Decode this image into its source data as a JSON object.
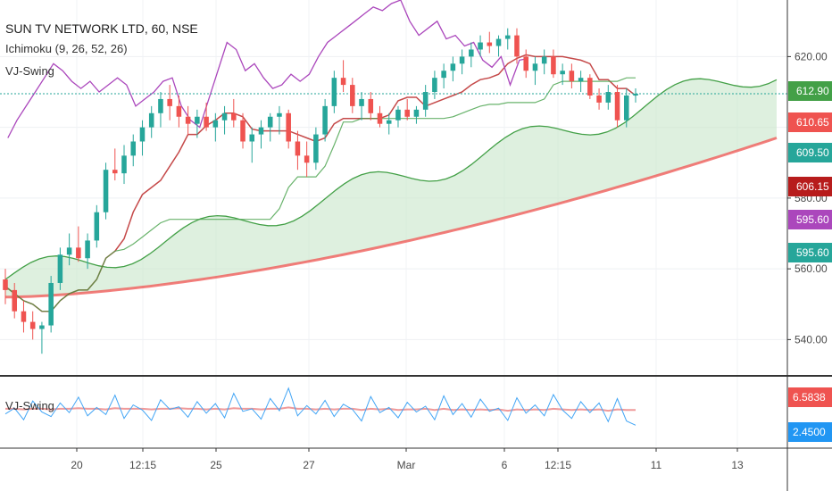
{
  "header": {
    "title": "SUN TV NETWORK LTD, 60, NSE",
    "indicator_ichimoku": "Ichimoku (9, 26, 52, 26)",
    "indicator_vj": "VJ-Swing"
  },
  "oscillator": {
    "label": "VJ-Swing"
  },
  "colors": {
    "up": "#26a69a",
    "down": "#ef5350",
    "purple": "#ab47bc",
    "green_line": "#43a047",
    "red_line": "#ef5350",
    "conv": "#b71c1c",
    "cloud": "#c8e6c9",
    "osc_blue": "#42a5f5",
    "osc_red": "#ef9a9a"
  },
  "chart_data": [
    {
      "type": "candlestick",
      "title": "SUN TV NETWORK LTD, 60, NSE",
      "y_ticks": [
        "620.00",
        "580.00",
        "560.00",
        "540.00"
      ],
      "x_ticks": [
        "20",
        "12:15",
        "25",
        "27",
        "Mar",
        "6",
        "12:15",
        "11",
        "13"
      ],
      "ylim": [
        530,
        636
      ],
      "price_labels": [
        {
          "text": "612.90",
          "color": "#43a047"
        },
        {
          "text": "610.65",
          "color": "#ef5350"
        },
        {
          "text": "609.50",
          "color": "#26a69a"
        },
        {
          "text": "606.15",
          "color": "#b71c1c"
        },
        {
          "text": "595.60",
          "color": "#ab47bc"
        },
        {
          "text": "595.60",
          "color": "#26a69a"
        }
      ],
      "last_price": 609.5,
      "candles": [
        [
          557,
          560,
          550,
          554
        ],
        [
          554,
          556,
          546,
          548
        ],
        [
          548,
          551,
          542,
          545
        ],
        [
          545,
          548,
          540,
          543
        ],
        [
          543,
          545,
          536,
          544
        ],
        [
          544,
          558,
          542,
          556
        ],
        [
          556,
          566,
          554,
          564
        ],
        [
          564,
          570,
          561,
          566
        ],
        [
          566,
          572,
          562,
          563
        ],
        [
          563,
          570,
          560,
          568
        ],
        [
          568,
          578,
          566,
          576
        ],
        [
          576,
          590,
          574,
          588
        ],
        [
          588,
          594,
          585,
          587
        ],
        [
          587,
          595,
          584,
          592
        ],
        [
          592,
          598,
          589,
          596
        ],
        [
          596,
          602,
          592,
          600
        ],
        [
          600,
          606,
          597,
          604
        ],
        [
          604,
          610,
          600,
          608
        ],
        [
          608,
          612,
          602,
          606
        ],
        [
          606,
          609,
          600,
          603
        ],
        [
          603,
          606,
          598,
          601
        ],
        [
          601,
          605,
          597,
          603
        ],
        [
          603,
          607,
          599,
          600
        ],
        [
          600,
          604,
          596,
          602
        ],
        [
          602,
          606,
          598,
          604
        ],
        [
          604,
          608,
          600,
          602
        ],
        [
          602,
          604,
          594,
          596
        ],
        [
          596,
          600,
          590,
          598
        ],
        [
          598,
          602,
          594,
          600
        ],
        [
          600,
          604,
          596,
          603
        ],
        [
          603,
          606,
          598,
          604
        ],
        [
          604,
          605,
          594,
          596
        ],
        [
          596,
          599,
          588,
          592
        ],
        [
          592,
          596,
          586,
          590
        ],
        [
          590,
          600,
          588,
          598
        ],
        [
          598,
          608,
          596,
          606
        ],
        [
          606,
          616,
          604,
          614
        ],
        [
          614,
          619,
          610,
          612
        ],
        [
          612,
          614,
          604,
          606
        ],
        [
          606,
          610,
          602,
          608
        ],
        [
          608,
          610,
          602,
          604
        ],
        [
          604,
          606,
          600,
          601
        ],
        [
          601,
          604,
          598,
          602
        ],
        [
          602,
          606,
          600,
          605
        ],
        [
          605,
          608,
          602,
          603
        ],
        [
          603,
          606,
          601,
          605
        ],
        [
          605,
          612,
          603,
          610
        ],
        [
          610,
          616,
          608,
          614
        ],
        [
          614,
          618,
          611,
          616
        ],
        [
          616,
          620,
          613,
          618
        ],
        [
          618,
          622,
          615,
          620
        ],
        [
          620,
          624,
          617,
          622
        ],
        [
          622,
          626,
          620,
          624
        ],
        [
          624,
          627,
          621,
          623
        ],
        [
          623,
          626,
          620,
          625
        ],
        [
          625,
          628,
          622,
          626
        ],
        [
          626,
          628,
          618,
          620
        ],
        [
          620,
          622,
          614,
          616
        ],
        [
          616,
          620,
          612,
          618
        ],
        [
          618,
          622,
          615,
          620
        ],
        [
          620,
          622,
          614,
          615
        ],
        [
          615,
          618,
          612,
          616
        ],
        [
          616,
          618,
          611,
          613
        ],
        [
          613,
          616,
          610,
          614
        ],
        [
          614,
          615,
          608,
          609
        ],
        [
          609,
          611,
          605,
          607
        ],
        [
          607,
          612,
          605,
          610
        ],
        [
          610,
          612,
          600,
          602
        ],
        [
          602,
          611,
          600,
          609
        ],
        [
          609,
          611,
          607,
          609.5
        ]
      ]
    },
    {
      "type": "line",
      "title": "VJ-Swing",
      "y_ticks": [
        "6.5838",
        "2.4500"
      ],
      "ylim": [
        0,
        9
      ],
      "series": [
        {
          "values": [
            4.2,
            5.1,
            3.3,
            6.2,
            4.5,
            3.8,
            5.9,
            4.4,
            6.8,
            3.9,
            5.2,
            4.1,
            7.1,
            3.5,
            5.6,
            4.8,
            3.2,
            6.4,
            4.9,
            5.3,
            3.7,
            6.1,
            4.3,
            5.8,
            3.6,
            7.4,
            4.6,
            5.0,
            3.4,
            6.6,
            4.7,
            8.2,
            3.9,
            5.5,
            4.2,
            6.3,
            3.8,
            5.7,
            4.9,
            3.1,
            6.9,
            4.4,
            5.2,
            3.6,
            6.0,
            4.5,
            5.4,
            3.3,
            7.0,
            4.1,
            5.8,
            3.7,
            6.5,
            4.6,
            5.1,
            3.2,
            6.7,
            4.3,
            5.6,
            3.9,
            7.2,
            4.8,
            3.5,
            6.1,
            4.4,
            5.9,
            3.0,
            6.58,
            3.1,
            2.45
          ]
        },
        {
          "values": [
            5.0,
            5.0,
            4.9,
            5.0,
            5.0,
            4.9,
            5.0,
            5.0,
            5.1,
            5.0,
            5.0,
            4.9,
            5.1,
            5.0,
            5.0,
            5.0,
            4.9,
            5.0,
            5.0,
            5.1,
            5.0,
            5.0,
            4.9,
            5.0,
            4.9,
            5.1,
            5.0,
            5.0,
            4.9,
            5.0,
            5.0,
            5.2,
            5.0,
            5.0,
            4.9,
            5.0,
            4.9,
            5.0,
            5.0,
            4.8,
            5.0,
            4.9,
            5.0,
            4.8,
            4.9,
            4.9,
            5.0,
            4.8,
            5.0,
            4.8,
            4.9,
            4.8,
            4.9,
            4.8,
            4.9,
            4.7,
            4.9,
            4.8,
            4.9,
            4.8,
            5.0,
            4.9,
            4.8,
            4.9,
            4.8,
            4.9,
            4.7,
            4.9,
            4.8,
            4.8
          ]
        }
      ]
    }
  ]
}
